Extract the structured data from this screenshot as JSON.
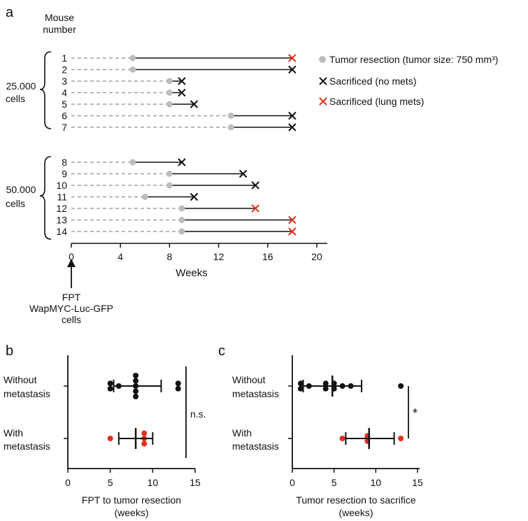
{
  "chart_data": [
    {
      "panel_label": "a",
      "type": "timeline",
      "xlabel": "Weeks",
      "xlim": [
        0,
        20
      ],
      "xticks": [
        0,
        4,
        8,
        12,
        16,
        20
      ],
      "row_header": [
        "Mouse",
        "number"
      ],
      "groups": [
        {
          "label_lines": [
            "25.000",
            "cells"
          ],
          "mice": [
            1,
            2,
            3,
            4,
            5,
            6,
            7
          ]
        },
        {
          "label_lines": [
            "50.000",
            "cells"
          ],
          "mice": [
            8,
            9,
            10,
            11,
            12,
            13,
            14
          ]
        }
      ],
      "mice": [
        {
          "id": 1,
          "resection": 5,
          "sacrifice": 18,
          "outcome": "lung_mets"
        },
        {
          "id": 2,
          "resection": 5,
          "sacrifice": 18,
          "outcome": "no_mets"
        },
        {
          "id": 3,
          "resection": 8,
          "sacrifice": 9,
          "outcome": "no_mets"
        },
        {
          "id": 4,
          "resection": 8,
          "sacrifice": 9,
          "outcome": "no_mets"
        },
        {
          "id": 5,
          "resection": 8,
          "sacrifice": 10,
          "outcome": "no_mets"
        },
        {
          "id": 6,
          "resection": 13,
          "sacrifice": 18,
          "outcome": "no_mets"
        },
        {
          "id": 7,
          "resection": 13,
          "sacrifice": 18,
          "outcome": "no_mets"
        },
        {
          "id": 8,
          "resection": 5,
          "sacrifice": 9,
          "outcome": "no_mets"
        },
        {
          "id": 9,
          "resection": 8,
          "sacrifice": 14,
          "outcome": "no_mets"
        },
        {
          "id": 10,
          "resection": 8,
          "sacrifice": 15,
          "outcome": "no_mets"
        },
        {
          "id": 11,
          "resection": 6,
          "sacrifice": 10,
          "outcome": "no_mets"
        },
        {
          "id": 12,
          "resection": 9,
          "sacrifice": 15,
          "outcome": "lung_mets"
        },
        {
          "id": 13,
          "resection": 9,
          "sacrifice": 18,
          "outcome": "lung_mets"
        },
        {
          "id": 14,
          "resection": 9,
          "sacrifice": 18,
          "outcome": "lung_mets"
        }
      ],
      "legend": {
        "resection": "Tumor resection (tumor size: 750 mm³)",
        "no_mets": "Sacrificed (no mets)",
        "lung_mets": "Sacrificed (lung mets)"
      },
      "annotation_lines": [
        "FPT",
        "WapMYC-Luc-GFP",
        "cells"
      ]
    },
    {
      "panel_label": "b",
      "type": "scatter",
      "xlabel_lines": [
        "FPT to tumor resection",
        "(weeks)"
      ],
      "xlim": [
        0,
        15
      ],
      "xticks": [
        0,
        5,
        10,
        15
      ],
      "groups": [
        {
          "label_lines": [
            "Without",
            "metastasis"
          ],
          "values": [
            5,
            5,
            6,
            8,
            8,
            8,
            8,
            8,
            13,
            13
          ],
          "mean": 8,
          "sd_low": 5.4,
          "sd_high": 11
        },
        {
          "label_lines": [
            "With",
            "metastasis"
          ],
          "values": [
            5,
            9,
            9,
            9
          ],
          "mean": 8,
          "sd_low": 6,
          "sd_high": 10
        }
      ],
      "significance": "n.s."
    },
    {
      "panel_label": "c",
      "type": "scatter",
      "xlabel_lines": [
        "Tumor resection to sacrifice",
        "(weeks)"
      ],
      "xlim": [
        0,
        15
      ],
      "xticks": [
        0,
        5,
        10,
        15
      ],
      "groups": [
        {
          "label_lines": [
            "Without",
            "metastasis"
          ],
          "values": [
            1,
            1,
            2,
            4,
            4,
            5,
            5,
            6,
            7,
            13
          ],
          "mean": 4.8,
          "sd_low": 1.3,
          "sd_high": 8.3
        },
        {
          "label_lines": [
            "With",
            "metastasis"
          ],
          "values": [
            6,
            9,
            9,
            13
          ],
          "mean": 9.2,
          "sd_low": 6.4,
          "sd_high": 12.2
        }
      ],
      "significance": "*"
    }
  ],
  "colors": {
    "black": "#111111",
    "red": "#e0301e",
    "resection_dot": "#bdbdbd",
    "dashed": "#a0a0a0"
  }
}
